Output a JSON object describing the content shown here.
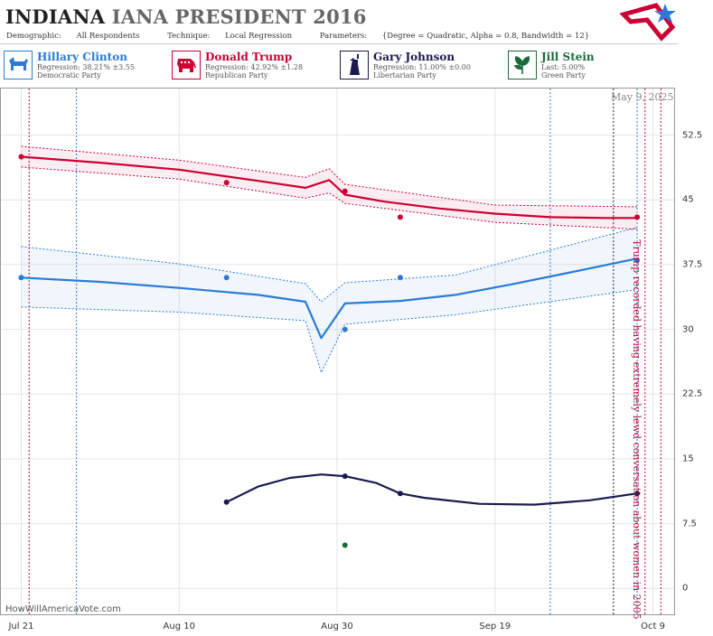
{
  "header": {
    "state": "INDIANA",
    "race": "IANA PRESIDENT 2016",
    "demographic_label": "Demographic:",
    "demographic_value": "All Respondents",
    "technique_label": "Technique:",
    "technique_value": "Local Regression",
    "parameters_label": "Parameters:",
    "parameters_value": "{Degree = Quadratic, Alpha = 0.8, Bandwidth = 12}"
  },
  "candidates": [
    {
      "name": "Hillary Clinton",
      "stat": "Regression: 38.21% ±3.55",
      "party": "Democratic Party",
      "color": "#2b7bd6",
      "icon": "donkey-icon"
    },
    {
      "name": "Donald Trump",
      "stat": "Regression: 42.92% ±1.28",
      "party": "Republican Party",
      "color": "#cc0033",
      "icon": "elephant-icon"
    },
    {
      "name": "Gary Johnson",
      "stat": "Regression: 11.00% ±0.00",
      "party": "Libertarian Party",
      "color": "#1a1a4e",
      "icon": "statue-of-liberty-icon"
    },
    {
      "name": "Jill Stein",
      "stat": "Last: 5.00%",
      "party": "Green Party",
      "color": "#1b6b3a",
      "icon": "leaf-icon"
    }
  ],
  "date_stamp": "May 9, 2025",
  "watermark": "HowWillAmericaVote.com",
  "annotation": "Trump recorded having extremely lewd conversation about women in 2005",
  "chart_data": {
    "type": "line",
    "xlabel": "",
    "ylabel": "",
    "x_ticks": [
      "Jul 21",
      "Aug 10",
      "Aug 30",
      "Sep 19",
      "Oct 9"
    ],
    "y_ticks": [
      0,
      7.5,
      15,
      22.5,
      30,
      37.5,
      45,
      52.5
    ],
    "ylim": [
      -3,
      58
    ],
    "xlim": [
      "2016-07-19",
      "2016-10-11"
    ],
    "grid": true,
    "series": [
      {
        "name": "Donald Trump",
        "color": "#cc0033",
        "trend": [
          [
            "2016-07-21",
            50.0
          ],
          [
            "2016-07-31",
            49.3
          ],
          [
            "2016-08-10",
            48.5
          ],
          [
            "2016-08-20",
            47.2
          ],
          [
            "2016-08-26",
            46.4
          ],
          [
            "2016-08-29",
            47.3
          ],
          [
            "2016-08-31",
            45.6
          ],
          [
            "2016-09-05",
            44.8
          ],
          [
            "2016-09-12",
            44.0
          ],
          [
            "2016-09-19",
            43.4
          ],
          [
            "2016-09-26",
            43.0
          ],
          [
            "2016-10-03",
            42.9
          ],
          [
            "2016-10-07",
            42.9
          ]
        ],
        "band_upper": [
          [
            "2016-07-21",
            51.2
          ],
          [
            "2016-08-10",
            49.6
          ],
          [
            "2016-08-26",
            47.6
          ],
          [
            "2016-08-29",
            48.6
          ],
          [
            "2016-08-31",
            46.8
          ],
          [
            "2016-09-19",
            44.4
          ],
          [
            "2016-10-07",
            44.2
          ]
        ],
        "band_lower": [
          [
            "2016-07-21",
            48.8
          ],
          [
            "2016-08-10",
            47.4
          ],
          [
            "2016-08-26",
            45.2
          ],
          [
            "2016-08-29",
            45.8
          ],
          [
            "2016-08-31",
            44.6
          ],
          [
            "2016-09-19",
            42.4
          ],
          [
            "2016-10-07",
            41.6
          ]
        ],
        "points": [
          [
            "2016-07-21",
            50.0
          ],
          [
            "2016-08-16",
            47.0
          ],
          [
            "2016-08-31",
            46.0
          ],
          [
            "2016-09-07",
            43.0
          ],
          [
            "2016-10-07",
            43.0
          ]
        ]
      },
      {
        "name": "Hillary Clinton",
        "color": "#2b7bd6",
        "trend": [
          [
            "2016-07-21",
            36.0
          ],
          [
            "2016-07-31",
            35.5
          ],
          [
            "2016-08-10",
            34.8
          ],
          [
            "2016-08-20",
            34.0
          ],
          [
            "2016-08-26",
            33.2
          ],
          [
            "2016-08-28",
            29.0
          ],
          [
            "2016-08-31",
            33.0
          ],
          [
            "2016-09-07",
            33.3
          ],
          [
            "2016-09-14",
            34.0
          ],
          [
            "2016-09-21",
            35.2
          ],
          [
            "2016-09-28",
            36.5
          ],
          [
            "2016-10-07",
            38.2
          ]
        ],
        "band_upper": [
          [
            "2016-07-21",
            39.6
          ],
          [
            "2016-08-10",
            37.6
          ],
          [
            "2016-08-26",
            35.3
          ],
          [
            "2016-08-28",
            33.2
          ],
          [
            "2016-08-31",
            35.4
          ],
          [
            "2016-09-14",
            36.3
          ],
          [
            "2016-10-07",
            41.8
          ]
        ],
        "band_lower": [
          [
            "2016-07-21",
            32.6
          ],
          [
            "2016-08-10",
            32.0
          ],
          [
            "2016-08-26",
            31.0
          ],
          [
            "2016-08-28",
            25.0
          ],
          [
            "2016-08-31",
            30.6
          ],
          [
            "2016-09-14",
            31.7
          ],
          [
            "2016-10-07",
            34.6
          ]
        ],
        "points": [
          [
            "2016-07-21",
            36.0
          ],
          [
            "2016-08-16",
            36.0
          ],
          [
            "2016-08-31",
            30.0
          ],
          [
            "2016-09-07",
            36.0
          ],
          [
            "2016-10-07",
            38.0
          ]
        ]
      },
      {
        "name": "Gary Johnson",
        "color": "#1a1a4e",
        "trend": [
          [
            "2016-08-16",
            10.0
          ],
          [
            "2016-08-20",
            11.8
          ],
          [
            "2016-08-24",
            12.8
          ],
          [
            "2016-08-28",
            13.2
          ],
          [
            "2016-08-31",
            13.0
          ],
          [
            "2016-09-04",
            12.2
          ],
          [
            "2016-09-07",
            11.0
          ],
          [
            "2016-09-10",
            10.5
          ],
          [
            "2016-09-17",
            9.8
          ],
          [
            "2016-09-24",
            9.7
          ],
          [
            "2016-10-01",
            10.2
          ],
          [
            "2016-10-07",
            11.0
          ]
        ],
        "points": [
          [
            "2016-08-16",
            10.0
          ],
          [
            "2016-08-31",
            13.0
          ],
          [
            "2016-09-07",
            11.0
          ],
          [
            "2016-10-07",
            11.0
          ]
        ]
      },
      {
        "name": "Jill Stein",
        "color": "#1b6b3a",
        "points": [
          [
            "2016-08-31",
            5.0
          ]
        ]
      }
    ],
    "vertical_markers": [
      {
        "date": "2016-07-22",
        "color": "#a0104a"
      },
      {
        "date": "2016-07-28",
        "color": "#2b7bd6"
      },
      {
        "date": "2016-09-26",
        "color": "#2b7bd6"
      },
      {
        "date": "2016-10-04",
        "color": "#1a1a4e"
      },
      {
        "date": "2016-10-07",
        "color": "#2b7bd6"
      },
      {
        "date": "2016-10-08",
        "color": "#cc0033"
      },
      {
        "date": "2016-10-10",
        "color": "#a0104a"
      }
    ]
  }
}
